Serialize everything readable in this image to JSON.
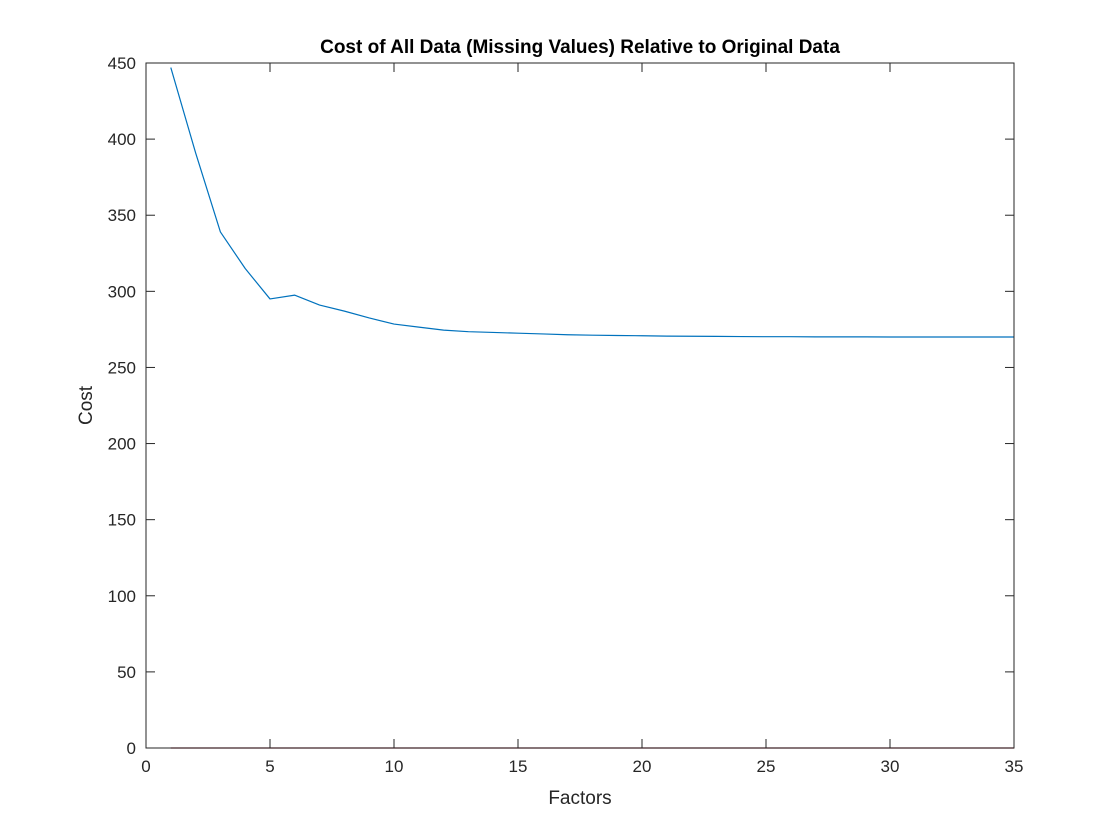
{
  "chart_data": {
    "type": "line",
    "title": "Cost of All Data (Missing Values) Relative to Original Data",
    "xlabel": "Factors",
    "ylabel": "Cost",
    "xlim": [
      0,
      35
    ],
    "ylim": [
      0,
      450
    ],
    "xticks": [
      0,
      5,
      10,
      15,
      20,
      25,
      30,
      35
    ],
    "yticks": [
      0,
      50,
      100,
      150,
      200,
      250,
      300,
      350,
      400,
      450
    ],
    "grid": false,
    "legend": "none",
    "series": [
      {
        "color": "#0072BD",
        "x": [
          1,
          2,
          3,
          4,
          5,
          6,
          7,
          8,
          9,
          10,
          11,
          12,
          13,
          14,
          15,
          16,
          17,
          18,
          19,
          20,
          21,
          22,
          23,
          24,
          25,
          26,
          27,
          28,
          29,
          30,
          31,
          32,
          33,
          34,
          35
        ],
        "y": [
          447,
          391,
          339,
          315,
          295,
          297.5,
          291,
          287,
          282.5,
          278.5,
          276.5,
          274.5,
          273.5,
          273,
          272.5,
          272,
          271.5,
          271.2,
          271,
          270.8,
          270.6,
          270.5,
          270.4,
          270.3,
          270.2,
          270.2,
          270.1,
          270.1,
          270.1,
          270,
          270,
          270,
          270,
          270,
          270
        ]
      },
      {
        "color": "#A2142F",
        "x": [
          1,
          2,
          3,
          4,
          5,
          6,
          7,
          8,
          9,
          10,
          11,
          12,
          13,
          14,
          15,
          16,
          17,
          18,
          19,
          20,
          21,
          22,
          23,
          24,
          25,
          26,
          27,
          28,
          29,
          30,
          31,
          32,
          33,
          34,
          35
        ],
        "y": [
          0,
          0,
          0,
          0,
          0,
          0,
          0,
          0,
          0,
          0,
          0,
          0,
          0,
          0,
          0,
          0,
          0,
          0,
          0,
          0,
          0,
          0,
          0,
          0,
          0,
          0,
          0,
          0,
          0,
          0,
          0,
          0,
          0,
          0,
          0
        ]
      }
    ]
  }
}
